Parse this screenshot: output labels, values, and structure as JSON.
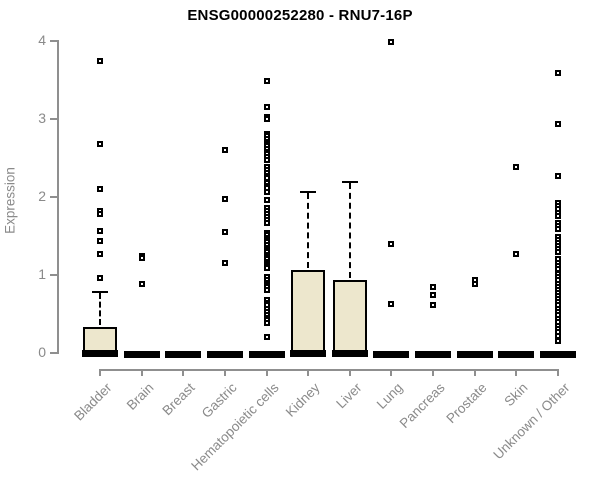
{
  "chart_data": {
    "type": "boxplot",
    "title": "ENSG00000252280 - RNU7-16P",
    "ylabel": "Expression",
    "xlabel": "",
    "ylim": [
      0,
      4
    ],
    "yticks": [
      0,
      1,
      2,
      3,
      4
    ],
    "grid": false,
    "legend": "none",
    "categories": [
      "Bladder",
      "Brain",
      "Breast",
      "Gastric",
      "Hematopoietic cells",
      "Kidney",
      "Liver",
      "Lung",
      "Pancreas",
      "Prostate",
      "Skin",
      "Unknown / Other"
    ],
    "colors": {
      "box_fill": "#EDE7CD",
      "box_stroke": "#000000",
      "axis": "#8f8f8f",
      "tick_label": "#8a8a8a",
      "title": "#000000"
    },
    "series": [
      {
        "category": "Bladder",
        "q1": 0,
        "median": 0,
        "q3": 0.33,
        "whisker_low": 0,
        "whisker_high": 0.78,
        "outliers": [
          3.74,
          2.68,
          2.1,
          1.82,
          1.78,
          1.57,
          1.44,
          1.27,
          0.96
        ]
      },
      {
        "category": "Brain",
        "q1": 0,
        "median": 0,
        "q3": 0,
        "whisker_low": 0,
        "whisker_high": 0,
        "outliers": [
          1.25,
          1.22,
          0.88
        ]
      },
      {
        "category": "Breast",
        "q1": 0,
        "median": 0,
        "q3": 0,
        "whisker_low": 0,
        "whisker_high": 0,
        "outliers": []
      },
      {
        "category": "Gastric",
        "q1": 0,
        "median": 0,
        "q3": 0,
        "whisker_low": 0,
        "whisker_high": 0,
        "outliers": [
          2.6,
          1.97,
          1.55,
          1.15
        ]
      },
      {
        "category": "Hematopoietic cells",
        "q1": 0,
        "median": 0,
        "q3": 0,
        "whisker_low": 0,
        "whisker_high": 0,
        "outliers": [
          3.49,
          3.16,
          3.03,
          3.0,
          2.81,
          2.78,
          2.75,
          2.71,
          2.68,
          2.65,
          2.62,
          2.58,
          2.55,
          2.51,
          2.48,
          2.38,
          2.35,
          2.31,
          2.27,
          2.24,
          2.18,
          2.14,
          2.11,
          2.07,
          1.96,
          1.86,
          1.82,
          1.78,
          1.74,
          1.7,
          1.67,
          1.54,
          1.51,
          1.48,
          1.45,
          1.42,
          1.38,
          1.35,
          1.32,
          1.29,
          1.26,
          1.23,
          1.2,
          1.17,
          1.14,
          1.11,
          1.09,
          0.97,
          0.94,
          0.9,
          0.87,
          0.84,
          0.81,
          0.68,
          0.64,
          0.61,
          0.57,
          0.53,
          0.49,
          0.45,
          0.42,
          0.38,
          0.21
        ]
      },
      {
        "category": "Kidney",
        "q1": 0,
        "median": 0,
        "q3": 1.07,
        "whisker_low": 0,
        "whisker_high": 2.06,
        "outliers": []
      },
      {
        "category": "Liver",
        "q1": 0,
        "median": 0,
        "q3": 0.93,
        "whisker_low": 0,
        "whisker_high": 2.19,
        "outliers": []
      },
      {
        "category": "Lung",
        "q1": 0,
        "median": 0,
        "q3": 0,
        "whisker_low": 0,
        "whisker_high": 0,
        "outliers": [
          3.99,
          1.4,
          0.63
        ]
      },
      {
        "category": "Pancreas",
        "q1": 0,
        "median": 0,
        "q3": 0,
        "whisker_low": 0,
        "whisker_high": 0,
        "outliers": [
          0.85,
          0.74,
          0.62
        ]
      },
      {
        "category": "Prostate",
        "q1": 0,
        "median": 0,
        "q3": 0,
        "whisker_low": 0,
        "whisker_high": 0,
        "outliers": [
          0.94,
          0.88
        ]
      },
      {
        "category": "Skin",
        "q1": 0,
        "median": 0,
        "q3": 0,
        "whisker_low": 0,
        "whisker_high": 0,
        "outliers": [
          2.38,
          1.27
        ]
      },
      {
        "category": "Unknown / Other",
        "q1": 0,
        "median": 0,
        "q3": 0,
        "whisker_low": 0,
        "whisker_high": 0,
        "outliers": [
          3.59,
          2.94,
          2.27,
          1.92,
          1.88,
          1.84,
          1.8,
          1.76,
          1.67,
          1.63,
          1.59,
          1.49,
          1.45,
          1.41,
          1.37,
          1.33,
          1.3,
          1.2,
          1.16,
          1.12,
          1.08,
          1.01,
          0.97,
          0.93,
          0.89,
          0.85,
          0.81,
          0.77,
          0.73,
          0.69,
          0.65,
          0.61,
          0.57,
          0.53,
          0.49,
          0.44,
          0.4,
          0.35,
          0.31,
          0.27,
          0.22,
          0.16
        ]
      }
    ]
  }
}
